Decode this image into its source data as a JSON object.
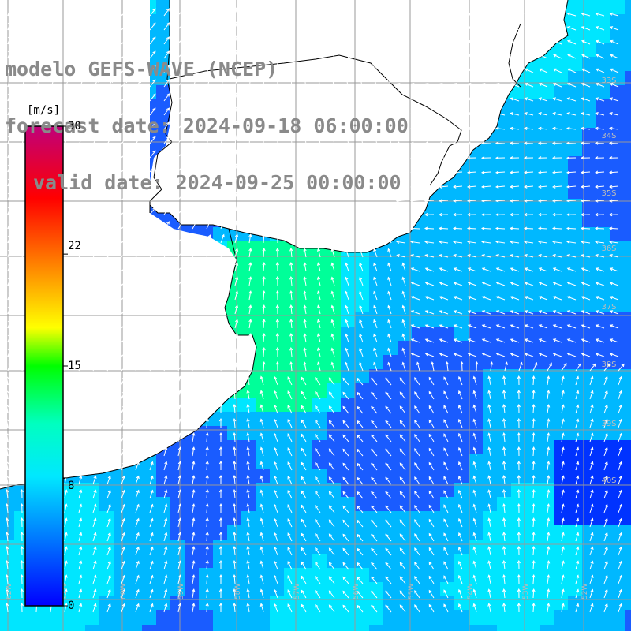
{
  "title": {
    "line1": "modelo GEFS-WAVE (NCEP)",
    "line2": "forecast date: 2024-09-18 06:00:00",
    "line3": "valid date: 2024-09-25 00:00:00"
  },
  "colorbar": {
    "unit": "[m/s]",
    "min": 0,
    "max": 30,
    "tick_labels": [
      "30",
      "22",
      "15",
      "8",
      "0"
    ],
    "tick_values": [
      30,
      22,
      15,
      8,
      0
    ],
    "colors": [
      "#0000ff",
      "#00c8ff",
      "#00ffe0",
      "#00ff00",
      "#ffff00",
      "#ff8000",
      "#ff0000",
      "#c0007a"
    ]
  },
  "map": {
    "land_color": "#ffffff",
    "grid_color": "#999999",
    "vector_color": "#ffffff",
    "lat_labels": [
      "33S",
      "34S",
      "35S",
      "36S",
      "37S",
      "38S",
      "39S",
      "40S"
    ],
    "lon_labels": [
      "62W",
      "61W",
      "60W",
      "59W",
      "58W",
      "57W",
      "56W",
      "55W",
      "54W",
      "53W",
      "52W"
    ],
    "wind_field_colors": {
      "weak": "#1a5cff",
      "moderate": "#00b8ff",
      "fresh": "#00e6ff",
      "strong": "#00ff88"
    }
  }
}
